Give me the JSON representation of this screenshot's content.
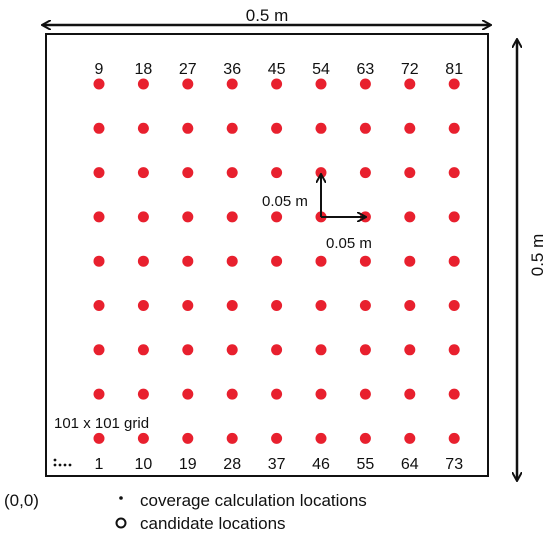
{
  "width_label": "0.5 m",
  "height_label": "0.5 m",
  "spacing_vertical_label": "0.05 m",
  "spacing_horizontal_label": "0.05 m",
  "grid_label": "101 x 101 grid",
  "origin_label": "(0,0)",
  "top_numbers": [
    "9",
    "18",
    "27",
    "36",
    "45",
    "54",
    "63",
    "72",
    "81"
  ],
  "bottom_numbers": [
    "1",
    "10",
    "19",
    "28",
    "37",
    "46",
    "55",
    "64",
    "73"
  ],
  "legend": {
    "coverage": "coverage calculation locations",
    "candidate": "candidate locations"
  },
  "grid": {
    "columns": 9,
    "rows": 9,
    "dot_color": "#e8202e"
  }
}
